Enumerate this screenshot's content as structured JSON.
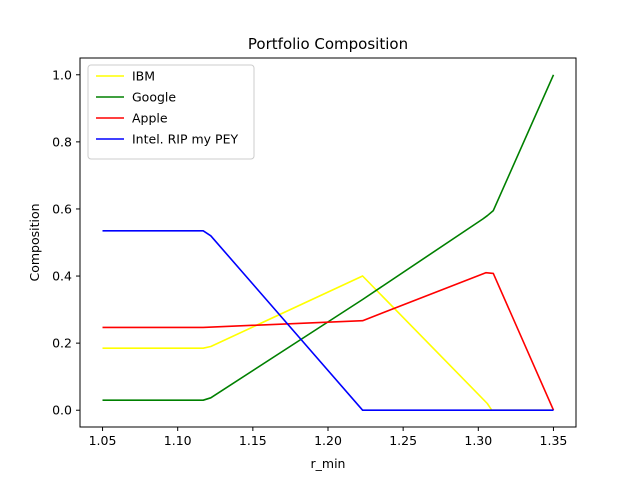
{
  "chart_data": {
    "type": "line",
    "title": "Portfolio Composition",
    "xlabel": "r_min",
    "ylabel": "Composition",
    "xlim": [
      1.035,
      1.365
    ],
    "ylim": [
      -0.05,
      1.05
    ],
    "xticks": [
      1.05,
      1.1,
      1.15,
      1.2,
      1.25,
      1.3,
      1.35
    ],
    "xtick_labels": [
      "1.05",
      "1.10",
      "1.15",
      "1.20",
      "1.25",
      "1.30",
      "1.35"
    ],
    "yticks": [
      0.0,
      0.2,
      0.4,
      0.6,
      0.8,
      1.0
    ],
    "ytick_labels": [
      "0.0",
      "0.2",
      "0.4",
      "0.6",
      "0.8",
      "1.0"
    ],
    "grid": false,
    "legend_position": "top-left",
    "series": [
      {
        "name": "IBM",
        "color": "#ffff00",
        "x": [
          1.05,
          1.117,
          1.122,
          1.223,
          1.306,
          1.309,
          1.35
        ],
        "y": [
          0.185,
          0.185,
          0.19,
          0.4,
          0.02,
          0.0,
          0.0
        ]
      },
      {
        "name": "Google",
        "color": "#008000",
        "x": [
          1.05,
          1.117,
          1.122,
          1.223,
          1.303,
          1.306,
          1.31,
          1.35
        ],
        "y": [
          0.03,
          0.03,
          0.037,
          0.33,
          0.57,
          0.58,
          0.595,
          1.0
        ]
      },
      {
        "name": "Apple",
        "color": "#ff0000",
        "x": [
          1.05,
          1.117,
          1.223,
          1.305,
          1.31,
          1.35
        ],
        "y": [
          0.247,
          0.247,
          0.267,
          0.41,
          0.408,
          0.0
        ]
      },
      {
        "name": "Intel. RIP my PEY",
        "color": "#0000ff",
        "x": [
          1.05,
          1.117,
          1.122,
          1.223,
          1.35
        ],
        "y": [
          0.535,
          0.535,
          0.52,
          0.0,
          0.0
        ]
      }
    ]
  }
}
